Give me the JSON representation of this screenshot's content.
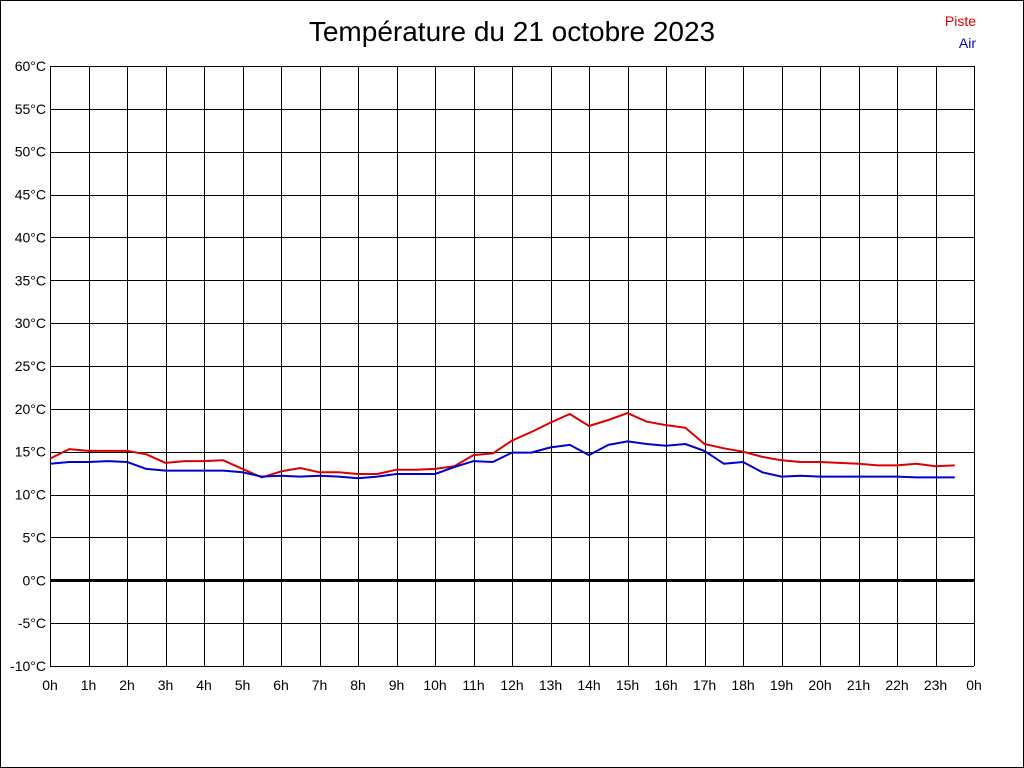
{
  "chart_data": {
    "type": "line",
    "title": "Température du 21 octobre 2023",
    "xlabel": "",
    "ylabel": "",
    "xlim": [
      0,
      24
    ],
    "ylim": [
      -10,
      60
    ],
    "grid": true,
    "legend_position": "top-right",
    "x_ticks": [
      "0h",
      "1h",
      "2h",
      "3h",
      "4h",
      "5h",
      "6h",
      "7h",
      "8h",
      "9h",
      "10h",
      "11h",
      "12h",
      "13h",
      "14h",
      "15h",
      "16h",
      "17h",
      "18h",
      "19h",
      "20h",
      "21h",
      "22h",
      "23h",
      "0h"
    ],
    "y_ticks": [
      "60°C",
      "55°C",
      "50°C",
      "45°C",
      "40°C",
      "35°C",
      "30°C",
      "25°C",
      "20°C",
      "15°C",
      "10°C",
      "5°C",
      "0°C",
      "-5°C",
      "-10°C"
    ],
    "y_tick_values": [
      60,
      55,
      50,
      45,
      40,
      35,
      30,
      25,
      20,
      15,
      10,
      5,
      0,
      -5,
      -10
    ],
    "series": [
      {
        "name": "Piste",
        "color": "#dd0000",
        "x": [
          0,
          0.5,
          1,
          1.5,
          2,
          2.5,
          3,
          3.5,
          4,
          4.5,
          5,
          5.5,
          6,
          6.5,
          7,
          7.5,
          8,
          8.5,
          9,
          9.5,
          10,
          10.5,
          11,
          11.5,
          12,
          12.5,
          13,
          13.5,
          14,
          14.5,
          15,
          15.5,
          16,
          16.5,
          17,
          17.5,
          18,
          18.5,
          19,
          19.5,
          20,
          20.5,
          21,
          21.5,
          22,
          22.5,
          23,
          23.5
        ],
        "values": [
          14.2,
          15.3,
          15.1,
          15.1,
          15.1,
          14.7,
          13.7,
          13.9,
          13.9,
          14.0,
          13.0,
          12.0,
          12.7,
          13.1,
          12.6,
          12.6,
          12.4,
          12.4,
          12.9,
          12.9,
          13.0,
          13.3,
          14.6,
          14.8,
          16.3,
          17.3,
          18.4,
          19.4,
          18.0,
          18.7,
          19.5,
          18.5,
          18.1,
          17.8,
          15.9,
          15.4,
          15.0,
          14.4,
          14.0,
          13.8,
          13.8,
          13.7,
          13.6,
          13.4,
          13.4,
          13.6,
          13.3,
          13.4
        ]
      },
      {
        "name": "Air",
        "color": "#0000cc",
        "x": [
          0,
          0.5,
          1,
          1.5,
          2,
          2.5,
          3,
          3.5,
          4,
          4.5,
          5,
          5.5,
          6,
          6.5,
          7,
          7.5,
          8,
          8.5,
          9,
          9.5,
          10,
          10.5,
          11,
          11.5,
          12,
          12.5,
          13,
          13.5,
          14,
          14.5,
          15,
          15.5,
          16,
          16.5,
          17,
          17.5,
          18,
          18.5,
          19,
          19.5,
          20,
          20.5,
          21,
          21.5,
          22,
          22.5,
          23,
          23.5
        ],
        "values": [
          13.6,
          13.8,
          13.8,
          13.9,
          13.8,
          13.0,
          12.8,
          12.8,
          12.8,
          12.8,
          12.6,
          12.1,
          12.2,
          12.1,
          12.2,
          12.1,
          11.9,
          12.1,
          12.4,
          12.4,
          12.4,
          13.2,
          13.9,
          13.8,
          14.9,
          14.9,
          15.5,
          15.8,
          14.6,
          15.8,
          16.2,
          15.9,
          15.7,
          15.9,
          15.1,
          13.6,
          13.8,
          12.6,
          12.1,
          12.2,
          12.1,
          12.1,
          12.1,
          12.1,
          12.1,
          12.0,
          12.0,
          12.0
        ]
      }
    ]
  }
}
